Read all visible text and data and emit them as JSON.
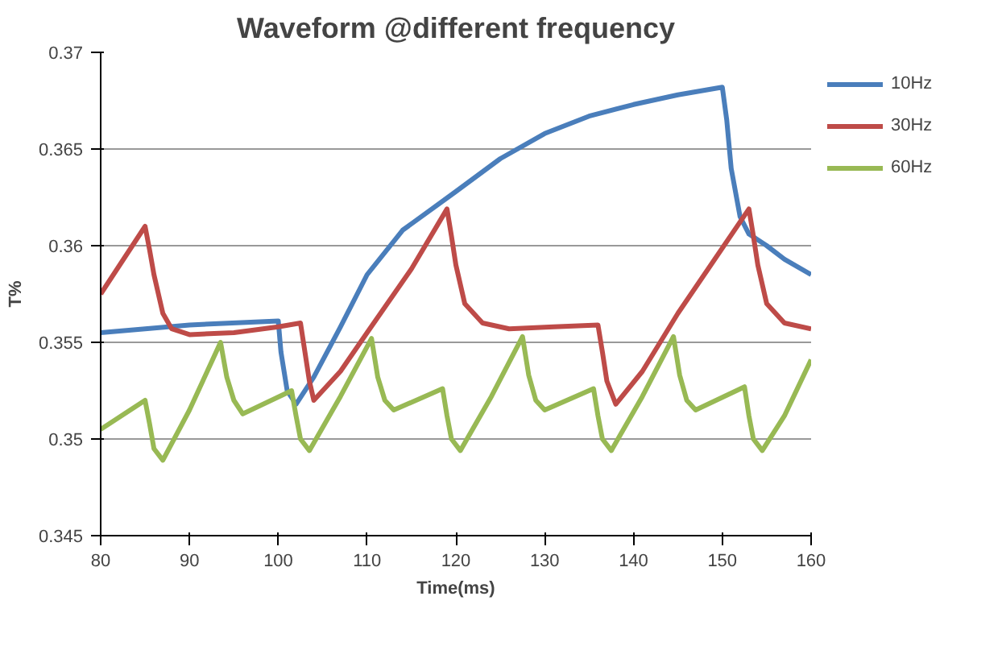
{
  "chart_data": {
    "type": "line",
    "title": "Waveform @different frequency",
    "xlabel": "Time(ms)",
    "ylabel": "T%",
    "xlim": [
      80,
      160
    ],
    "xticks": [
      80,
      90,
      100,
      110,
      120,
      130,
      140,
      150,
      160
    ],
    "ylim": [
      0.345,
      0.37
    ],
    "yticks": [
      0.345,
      0.35,
      0.355,
      0.36,
      0.365,
      0.37
    ],
    "grid": "y",
    "legend": "right",
    "marker": "none",
    "line_style": "solid",
    "series": [
      {
        "name": "10Hz",
        "color": "#4a7ebb",
        "x": [
          80,
          90,
          100,
          100.3,
          101,
          102,
          104,
          107,
          110,
          114,
          120,
          125,
          130,
          135,
          140,
          145,
          150,
          150.5,
          151,
          152,
          153,
          155,
          157,
          160
        ],
        "values": [
          0.3555,
          0.3559,
          0.3561,
          0.3545,
          0.3525,
          0.3518,
          0.3532,
          0.3558,
          0.3585,
          0.3608,
          0.3628,
          0.3645,
          0.3658,
          0.3667,
          0.3673,
          0.3678,
          0.3682,
          0.3665,
          0.364,
          0.3615,
          0.3606,
          0.36,
          0.3593,
          0.3585
        ]
      },
      {
        "name": "30Hz",
        "color": "#be4b48",
        "x": [
          80,
          85,
          85.5,
          86,
          87,
          88,
          90,
          95,
          100,
          102.5,
          103,
          103.5,
          104,
          107,
          110,
          115,
          119,
          119.5,
          120,
          121,
          123,
          126,
          131,
          136,
          136.5,
          137,
          138,
          141,
          145,
          149,
          153,
          153.5,
          154,
          155,
          157,
          160
        ],
        "values": [
          0.3575,
          0.361,
          0.3598,
          0.3585,
          0.3565,
          0.3557,
          0.3554,
          0.3555,
          0.3558,
          0.356,
          0.3545,
          0.353,
          0.352,
          0.3535,
          0.3555,
          0.3588,
          0.3619,
          0.3605,
          0.359,
          0.357,
          0.356,
          0.3557,
          0.3558,
          0.3559,
          0.3545,
          0.353,
          0.3518,
          0.3535,
          0.3565,
          0.3592,
          0.3619,
          0.3605,
          0.359,
          0.357,
          0.356,
          0.3557
        ]
      },
      {
        "name": "60Hz",
        "color": "#98b954",
        "x": [
          80,
          85,
          85.5,
          86,
          87,
          90,
          93.5,
          94.2,
          95,
          96,
          101.5,
          102,
          102.5,
          103.5,
          107,
          110.5,
          111.2,
          112,
          113,
          118.5,
          119,
          119.5,
          120.5,
          124,
          127.5,
          128.2,
          129,
          130,
          135.5,
          136,
          136.5,
          137.5,
          141,
          144.5,
          145.2,
          146,
          147,
          152.5,
          153,
          153.5,
          154.5,
          157,
          160
        ],
        "values": [
          0.3505,
          0.352,
          0.3508,
          0.3495,
          0.3489,
          0.3515,
          0.355,
          0.3532,
          0.352,
          0.3513,
          0.3525,
          0.3512,
          0.35,
          0.3494,
          0.3522,
          0.3552,
          0.3532,
          0.352,
          0.3515,
          0.3526,
          0.3512,
          0.35,
          0.3494,
          0.3522,
          0.3553,
          0.3533,
          0.352,
          0.3515,
          0.3526,
          0.3512,
          0.35,
          0.3494,
          0.3522,
          0.3553,
          0.3533,
          0.352,
          0.3515,
          0.3527,
          0.3512,
          0.35,
          0.3494,
          0.3512,
          0.3541
        ]
      }
    ]
  }
}
